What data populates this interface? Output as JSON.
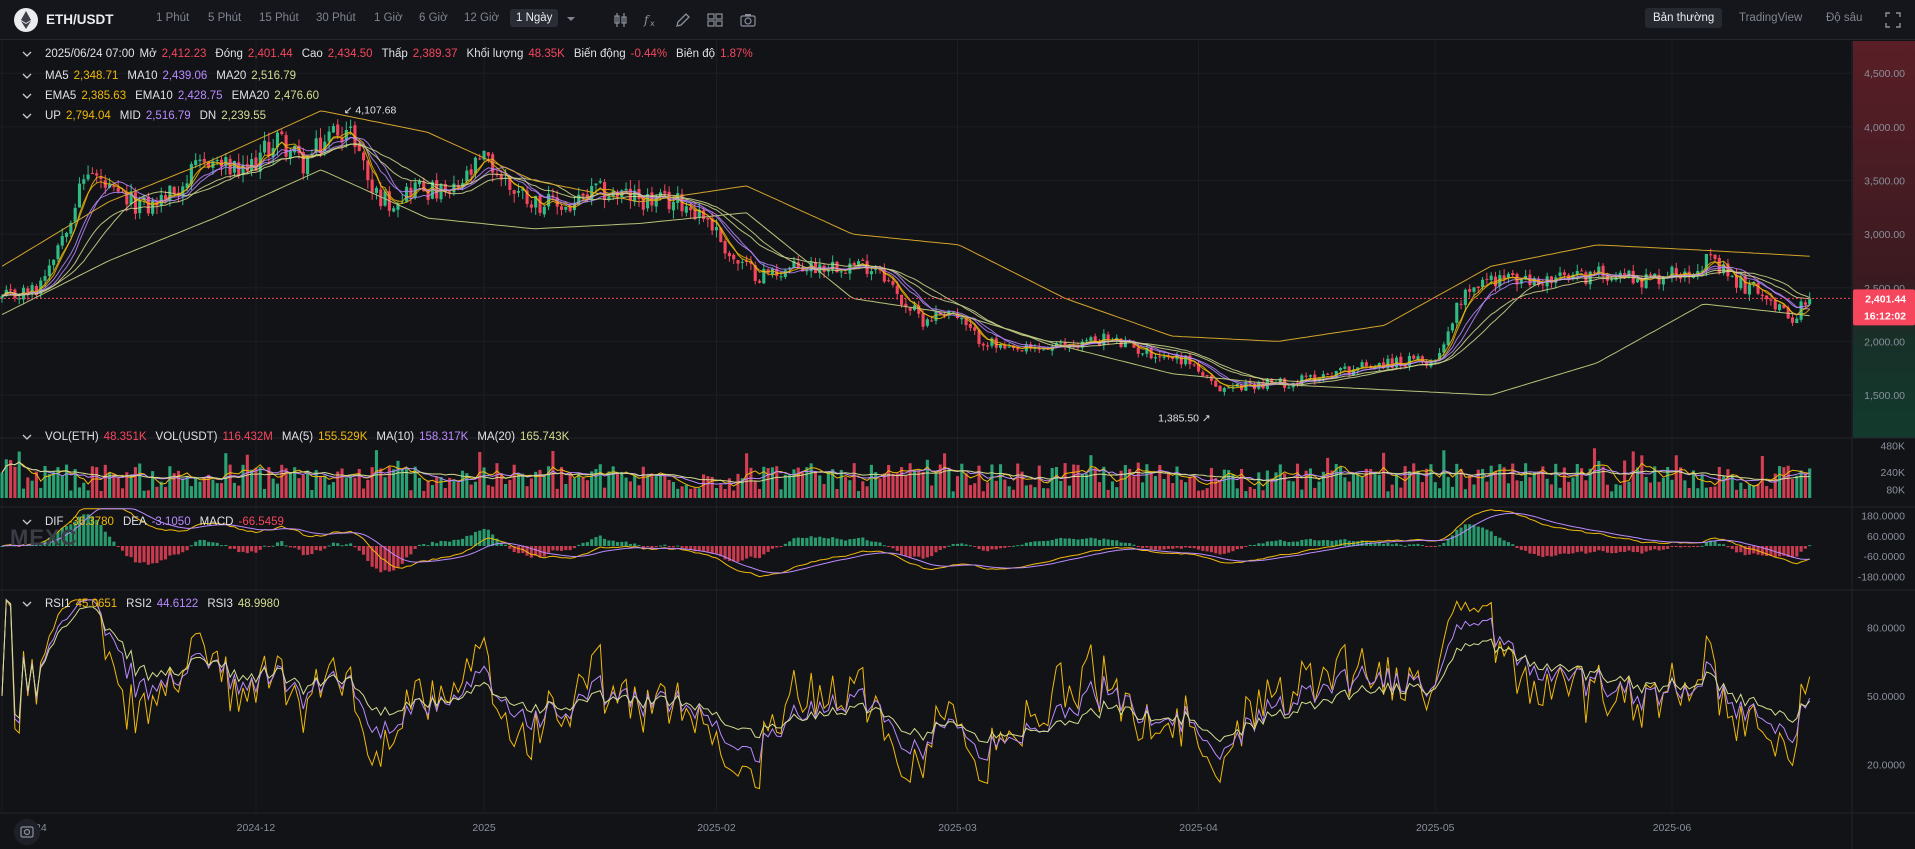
{
  "toolbar": {
    "symbol": "ETH/USDT",
    "timeframes": [
      "1 Phút",
      "5 Phút",
      "15 Phút",
      "30 Phút",
      "1 Giờ",
      "6 Giờ",
      "12 Giờ",
      "1 Ngày"
    ],
    "active_timeframe": "1 Ngày",
    "views": [
      "Bản thường",
      "TradingView",
      "Độ sâu"
    ],
    "active_view": "Bản thường",
    "tools": [
      "candle-type-icon",
      "indicator-icon",
      "draw-icon",
      "layout-icon",
      "camera-icon"
    ]
  },
  "legend": {
    "ohlc": {
      "date": "2025/06/24 07:00",
      "open_label": "Mở",
      "open": "2,412.23",
      "close_label": "Đóng",
      "close": "2,401.44",
      "high_label": "Cao",
      "high": "2,434.50",
      "low_label": "Thấp",
      "low": "2,389.37",
      "volume_label": "Khối lượng",
      "volume": "48.35K",
      "change_label": "Biến động",
      "change": "-0.44%",
      "amplitude_label": "Biên độ",
      "amplitude": "1.87%"
    },
    "ma": [
      {
        "label": "MA5",
        "value": "2,348.71"
      },
      {
        "label": "MA10",
        "value": "2,439.06"
      },
      {
        "label": "MA20",
        "value": "2,516.79"
      }
    ],
    "ema": [
      {
        "label": "EMA5",
        "value": "2,385.63"
      },
      {
        "label": "EMA10",
        "value": "2,428.75"
      },
      {
        "label": "EMA20",
        "value": "2,476.60"
      }
    ],
    "boll": [
      {
        "label": "UP",
        "value": "2,794.04"
      },
      {
        "label": "MID",
        "value": "2,516.79"
      },
      {
        "label": "DN",
        "value": "2,239.55"
      }
    ],
    "vol": [
      {
        "label": "VOL(ETH)",
        "value": "48.351K"
      },
      {
        "label": "VOL(USDT)",
        "value": "116.432M"
      },
      {
        "label": "MA(5)",
        "value": "155.529K"
      },
      {
        "label": "MA(10)",
        "value": "158.317K"
      },
      {
        "label": "MA(20)",
        "value": "165.743K"
      }
    ],
    "macd": [
      {
        "label": "DIF",
        "value": "-36.3780"
      },
      {
        "label": "DEA",
        "value": "-3.1050"
      },
      {
        "label": "MACD",
        "value": "-66.5459"
      }
    ],
    "rsi": [
      {
        "label": "RSI1",
        "value": "45.0651"
      },
      {
        "label": "RSI2",
        "value": "44.6122"
      },
      {
        "label": "RSI3",
        "value": "48.9980"
      }
    ]
  },
  "watermark": "MEXC",
  "colors": {
    "up": "#2ebd85",
    "down": "#f6465d",
    "ma5": "#f0b90b",
    "ma10": "#b98aff",
    "ma20": "#d4dc8e",
    "price_tag": "#f6465d",
    "background": "#121317"
  },
  "chart_data": {
    "type": "candlestick",
    "main": {
      "yticks": [
        1500,
        2000,
        2500,
        3000,
        3500,
        4000,
        4500
      ],
      "ytick_labels": [
        "1,500.00",
        "2,000.00",
        "2,500.00",
        "3,000.00",
        "3,500.00",
        "4,000.00",
        "4,500.00"
      ],
      "ylim": [
        1100,
        4800
      ],
      "last_price": 2401.44,
      "last_price_label": "2,401.44",
      "countdown": "16:12:02",
      "max_label": "4,107.68",
      "max_value": 4107.68,
      "min_label": "1,385.50",
      "min_value": 1385.5,
      "bollinger_anchors": {
        "up": [
          2700,
          3300,
          3700,
          4150,
          3950,
          3500,
          3300,
          3450,
          3000,
          2900,
          2400,
          2050,
          2000,
          2150,
          2700,
          2900,
          2850,
          2794.04
        ],
        "dn": [
          2250,
          2750,
          3150,
          3600,
          3150,
          3050,
          3100,
          3200,
          2400,
          2250,
          1950,
          1700,
          1600,
          1550,
          1500,
          1800,
          2350,
          2239.55
        ]
      }
    },
    "volume": {
      "yticks": [
        80000,
        240000,
        480000
      ],
      "ytick_labels": [
        "80K",
        "240K",
        "480K"
      ],
      "ylim": [
        0,
        550000
      ]
    },
    "macd": {
      "yticks": [
        -180,
        -60,
        60,
        180
      ],
      "ytick_labels": [
        "-180.0000",
        "-60.0000",
        "60.0000",
        "180.0000"
      ],
      "ylim": [
        -230,
        230
      ]
    },
    "rsi": {
      "yticks": [
        20,
        50,
        80
      ],
      "ytick_labels": [
        "20.0000",
        "50.0000",
        "80.0000"
      ],
      "ylim": [
        5,
        95
      ]
    },
    "xaxis": {
      "labels": [
        "2024",
        "2024-12",
        "2025",
        "2025-02",
        "2025-03",
        "2025-04",
        "2025-05",
        "2025-06"
      ],
      "label_bar_index": [
        0,
        59,
        112,
        166,
        222,
        278,
        333,
        388
      ]
    },
    "candle_count": 421,
    "price_anchors": [
      {
        "i": 0,
        "p": 2400
      },
      {
        "i": 8,
        "p": 2480
      },
      {
        "i": 14,
        "p": 3000
      },
      {
        "i": 20,
        "p": 3600
      },
      {
        "i": 26,
        "p": 3350
      },
      {
        "i": 34,
        "p": 3250
      },
      {
        "i": 40,
        "p": 3400
      },
      {
        "i": 48,
        "p": 3700
      },
      {
        "i": 56,
        "p": 3550
      },
      {
        "i": 64,
        "p": 3900
      },
      {
        "i": 70,
        "p": 3650
      },
      {
        "i": 78,
        "p": 4000
      },
      {
        "i": 82,
        "p": 3900
      },
      {
        "i": 86,
        "p": 3400
      },
      {
        "i": 90,
        "p": 3300
      },
      {
        "i": 96,
        "p": 3450
      },
      {
        "i": 104,
        "p": 3350
      },
      {
        "i": 112,
        "p": 3700
      },
      {
        "i": 118,
        "p": 3450
      },
      {
        "i": 124,
        "p": 3300
      },
      {
        "i": 132,
        "p": 3250
      },
      {
        "i": 138,
        "p": 3400
      },
      {
        "i": 146,
        "p": 3350
      },
      {
        "i": 152,
        "p": 3300
      },
      {
        "i": 158,
        "p": 3300
      },
      {
        "i": 164,
        "p": 3150
      },
      {
        "i": 170,
        "p": 2750
      },
      {
        "i": 176,
        "p": 2620
      },
      {
        "i": 184,
        "p": 2680
      },
      {
        "i": 194,
        "p": 2720
      },
      {
        "i": 204,
        "p": 2700
      },
      {
        "i": 208,
        "p": 2420
      },
      {
        "i": 214,
        "p": 2200
      },
      {
        "i": 220,
        "p": 2300
      },
      {
        "i": 226,
        "p": 2050
      },
      {
        "i": 234,
        "p": 1900
      },
      {
        "i": 246,
        "p": 1950
      },
      {
        "i": 256,
        "p": 2030
      },
      {
        "i": 266,
        "p": 1900
      },
      {
        "i": 276,
        "p": 1820
      },
      {
        "i": 282,
        "p": 1550
      },
      {
        "i": 290,
        "p": 1600
      },
      {
        "i": 300,
        "p": 1620
      },
      {
        "i": 310,
        "p": 1720
      },
      {
        "i": 320,
        "p": 1800
      },
      {
        "i": 333,
        "p": 1820
      },
      {
        "i": 340,
        "p": 2500
      },
      {
        "i": 348,
        "p": 2600
      },
      {
        "i": 356,
        "p": 2550
      },
      {
        "i": 366,
        "p": 2600
      },
      {
        "i": 374,
        "p": 2650
      },
      {
        "i": 382,
        "p": 2570
      },
      {
        "i": 392,
        "p": 2680
      },
      {
        "i": 396,
        "p": 2750
      },
      {
        "i": 404,
        "p": 2530
      },
      {
        "i": 410,
        "p": 2450
      },
      {
        "i": 415,
        "p": 2200
      },
      {
        "i": 420,
        "p": 2401.44
      }
    ]
  }
}
